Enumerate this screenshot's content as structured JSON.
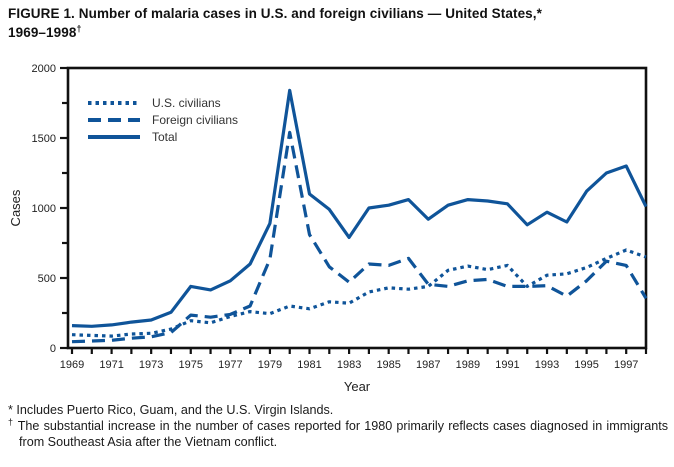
{
  "title": {
    "line1": "FIGURE 1. Number of malaria cases in U.S. and foreign civilians — United States,*",
    "line2": "1969–1998",
    "dagger": "†"
  },
  "footnotes": {
    "fn1_marker": "*",
    "fn1_text": "Includes Puerto Rico, Guam, and the U.S. Virgin Islands.",
    "fn2_marker": "†",
    "fn2_text": "The substantial increase in the number of cases reported for 1980 primarily reflects cases diagnosed in immigrants from Southeast Asia after the Vietnam conflict."
  },
  "chart_data": {
    "type": "line",
    "title": "",
    "xlabel": "Year",
    "ylabel": "Cases",
    "x_tick_years_labeled": [
      1969,
      1971,
      1973,
      1975,
      1977,
      1979,
      1981,
      1983,
      1985,
      1987,
      1989,
      1991,
      1993,
      1995,
      1997
    ],
    "x_range": [
      1969,
      1998
    ],
    "ylim": [
      0,
      2000
    ],
    "y_major_ticks": [
      0,
      500,
      1000,
      1500,
      2000
    ],
    "y_minor_step": 250,
    "grid": false,
    "legend_position": "top-left-inside",
    "line_color": "#0f5499",
    "axis_color": "#111111",
    "x": [
      1969,
      1970,
      1971,
      1972,
      1973,
      1974,
      1975,
      1976,
      1977,
      1978,
      1979,
      1980,
      1981,
      1982,
      1983,
      1984,
      1985,
      1986,
      1987,
      1988,
      1989,
      1990,
      1991,
      1992,
      1993,
      1994,
      1995,
      1996,
      1997,
      1998
    ],
    "series": [
      {
        "name": "U.S. civilians",
        "style": "dotted",
        "values": [
          95,
          90,
          85,
          100,
          105,
          135,
          195,
          180,
          225,
          260,
          245,
          300,
          280,
          330,
          320,
          400,
          430,
          420,
          440,
          555,
          585,
          560,
          590,
          440,
          520,
          530,
          575,
          640,
          700,
          650
        ]
      },
      {
        "name": "Foreign civilians",
        "style": "dashed",
        "values": [
          45,
          50,
          55,
          70,
          80,
          110,
          235,
          220,
          240,
          300,
          635,
          1540,
          810,
          580,
          470,
          600,
          590,
          640,
          455,
          440,
          480,
          490,
          440,
          440,
          445,
          370,
          480,
          620,
          590,
          355
        ]
      },
      {
        "name": "Total",
        "style": "solid",
        "values": [
          160,
          155,
          165,
          185,
          200,
          255,
          440,
          415,
          480,
          600,
          890,
          1840,
          1100,
          990,
          790,
          1000,
          1020,
          1060,
          920,
          1020,
          1060,
          1050,
          1030,
          880,
          970,
          900,
          1120,
          1250,
          1300,
          1010
        ]
      }
    ]
  }
}
